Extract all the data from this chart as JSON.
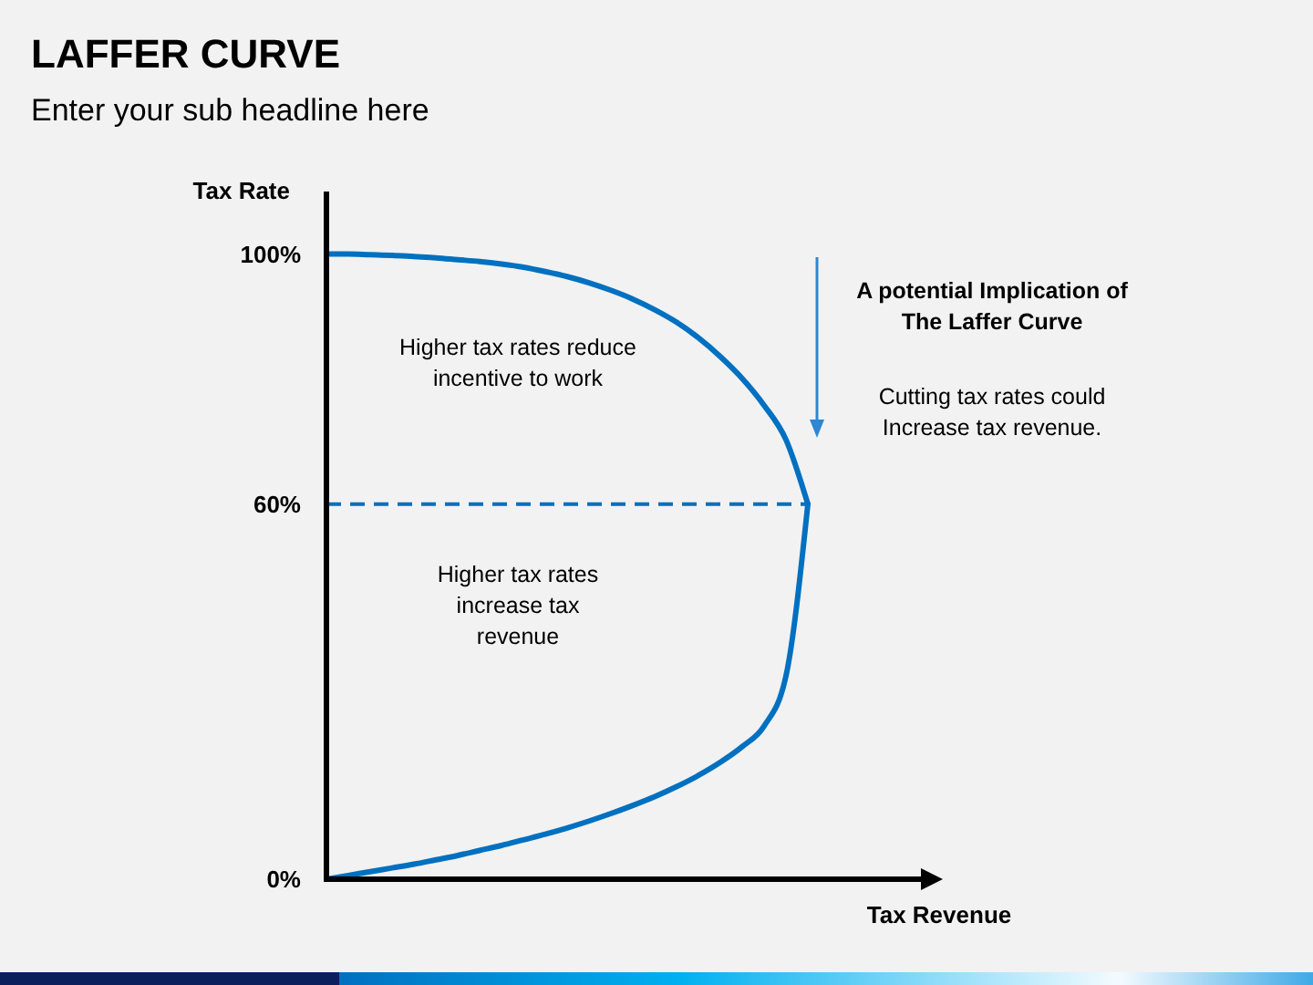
{
  "chart_data": {
    "type": "line",
    "title": "LAFFER CURVE",
    "subtitle": "Enter your sub headline here",
    "xlabel": "Tax Revenue",
    "ylabel": "Tax Rate",
    "categories": [
      null,
      null,
      null,
      null,
      null,
      null,
      null,
      null,
      null,
      null,
      null,
      null,
      null,
      null,
      null,
      null,
      null,
      null,
      null,
      null,
      null,
      null,
      null,
      null,
      null,
      null,
      null,
      null,
      null
    ],
    "series": [
      {
        "color": "#0070c0",
        "values": [
          100,
          100,
          99.9,
          99.8,
          99.6,
          99.4,
          99.1,
          98.8,
          98.4,
          97.9,
          97.2,
          96.4,
          95.4,
          94.2,
          92.8,
          91.1,
          89.1,
          86.6,
          83.6,
          80.1,
          75.8,
          70.3,
          60,
          null,
          null,
          null,
          null,
          null,
          null
        ]
      },
      {
        "color": "#0070c0",
        "values": [
          0,
          0.6,
          1.2,
          1.8,
          2.4,
          3.1,
          3.8,
          4.6,
          5.4,
          6.3,
          7.2,
          8.2,
          9.3,
          10.5,
          11.8,
          13.2,
          14.8,
          16.6,
          18.7,
          21.2,
          24.5,
          32.5,
          60,
          null,
          null,
          null,
          null,
          null,
          null
        ]
      }
    ],
    "ylim": [
      0,
      110
    ],
    "yticks": [
      {
        "value": 0,
        "label": "0%"
      },
      {
        "value": 60,
        "label": "60%"
      },
      {
        "value": 100,
        "label": "100%"
      }
    ],
    "tick_labels": "y",
    "ref_lines": [
      {
        "axis": "y",
        "value": 60,
        "color": "#0070c0",
        "line_style": "dashed"
      }
    ],
    "annotations": [
      "Higher tax rates reduce incentive to work",
      "Higher tax rates increase tax revenue",
      "A potential Implication of The Laffer Curve",
      "Cutting tax rates could Increase tax revenue."
    ]
  }
}
